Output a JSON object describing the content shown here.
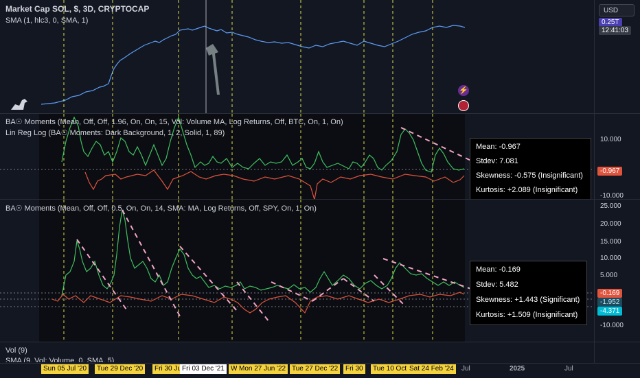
{
  "main": {
    "legend_line1": "Market Cap SOL, $, 3D, CRYPTOCAP",
    "legend_line2": "SMA (1, hlc3, 0, SMA, 1)",
    "currency_button": "USD",
    "price_label_1": "0.25T",
    "price_label_2": "12:41:03"
  },
  "pane2": {
    "legend_line1": "BA☉ Moments (Mean, Off, Off, 1.96, On, On, 15, Vol: Volume MA, Log Returns, Off, BTC, On, 1, On)",
    "legend_line2": "Lin Reg Log (BA☉ Moments: Dark Background, 1, 2, Solid, 1, 89)",
    "axis_ticks": [
      "10.000",
      "-10.000"
    ],
    "current_value": "-0.967",
    "stats": {
      "mean": "Mean: -0.967",
      "stdev": "Stdev: 7.081",
      "skewness": "Skewness: -0.575 (Insignificant)",
      "kurtosis": "Kurtosis: +2.089 (Insignificant)"
    }
  },
  "pane3": {
    "legend_line1": "BA☉ Moments (Mean, Off, Off, 0.5, On, On, 14, SMA: MA, Log Returns, Off, SPY, On, 1, On)",
    "axis_ticks": [
      "25.000",
      "20.000",
      "15.000",
      "10.000",
      "5.000",
      "-10.000"
    ],
    "current_value": "-0.169",
    "value_2": "-1.952",
    "value_3": "-4.371",
    "stats": {
      "mean": "Mean: -0.169",
      "stdev": "Stdev: 5.482",
      "skewness": "Skewness: +1.443 (Significant)",
      "kurtosis": "Kurtosis: +1.509 (Insignificant)"
    }
  },
  "volume_pane": {
    "legend_line1": "Vol (9)",
    "legend_line2": "SMA (9, Vol: Volume, 0, SMA, 5)"
  },
  "time_axis": {
    "labels": [
      "Sun 05 Jul '20",
      "Tue 29 Dec '20",
      "Fri 30 Jul",
      "Fri 03 Dec '21",
      "W",
      "Mon 27 Jun '22",
      "Tue 27 Dec '22",
      "Fri 30",
      "Tue 10 Oct",
      "Sat 24 Feb '24",
      "Jul",
      "2025",
      "Jul"
    ]
  },
  "colors": {
    "price_line": "#5b9cf6",
    "up": "#3fbf5f",
    "down": "#e0533d",
    "trend_dash": "#f5a5c8",
    "vertical_dash": "#e3e34a",
    "highlight": "#f5d33f"
  }
}
